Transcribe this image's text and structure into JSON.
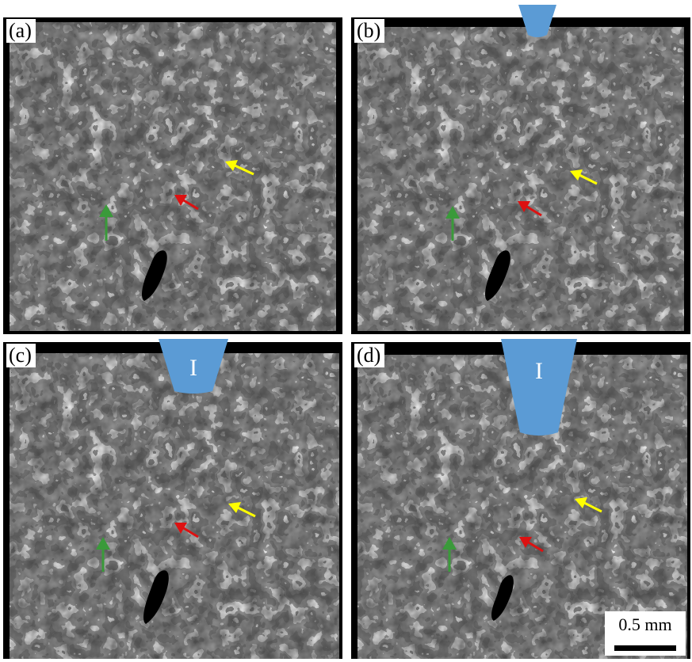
{
  "panels": [
    {
      "id": "a",
      "label": "(a)",
      "indenter": null
    },
    {
      "id": "b",
      "label": "(b)",
      "indenter": {
        "text": "",
        "size": "small"
      }
    },
    {
      "id": "c",
      "label": "(c)",
      "indenter": {
        "text": "I",
        "size": "medium"
      }
    },
    {
      "id": "d",
      "label": "(d)",
      "indenter": {
        "text": "I",
        "size": "large"
      }
    }
  ],
  "arrows": {
    "yellow": "#ffff00",
    "red": "#dd1111",
    "green": "#3a9a3a"
  },
  "indenter_color": "#5b9bd5",
  "scale_bar": {
    "text": "0.5 mm"
  }
}
